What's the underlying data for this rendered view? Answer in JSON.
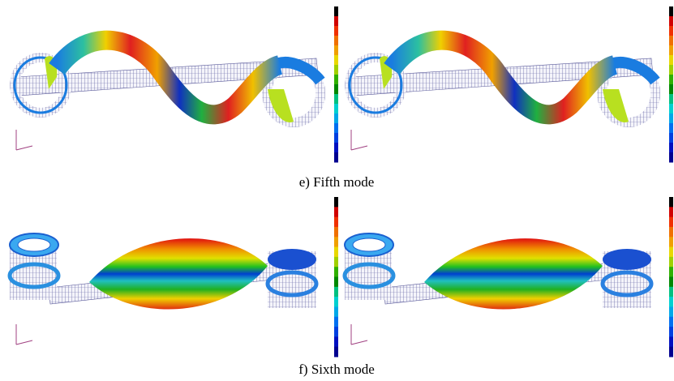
{
  "figure": {
    "panels": [
      {
        "caption": "e) Fifth mode"
      },
      {
        "caption": "f) Sixth mode"
      }
    ]
  }
}
